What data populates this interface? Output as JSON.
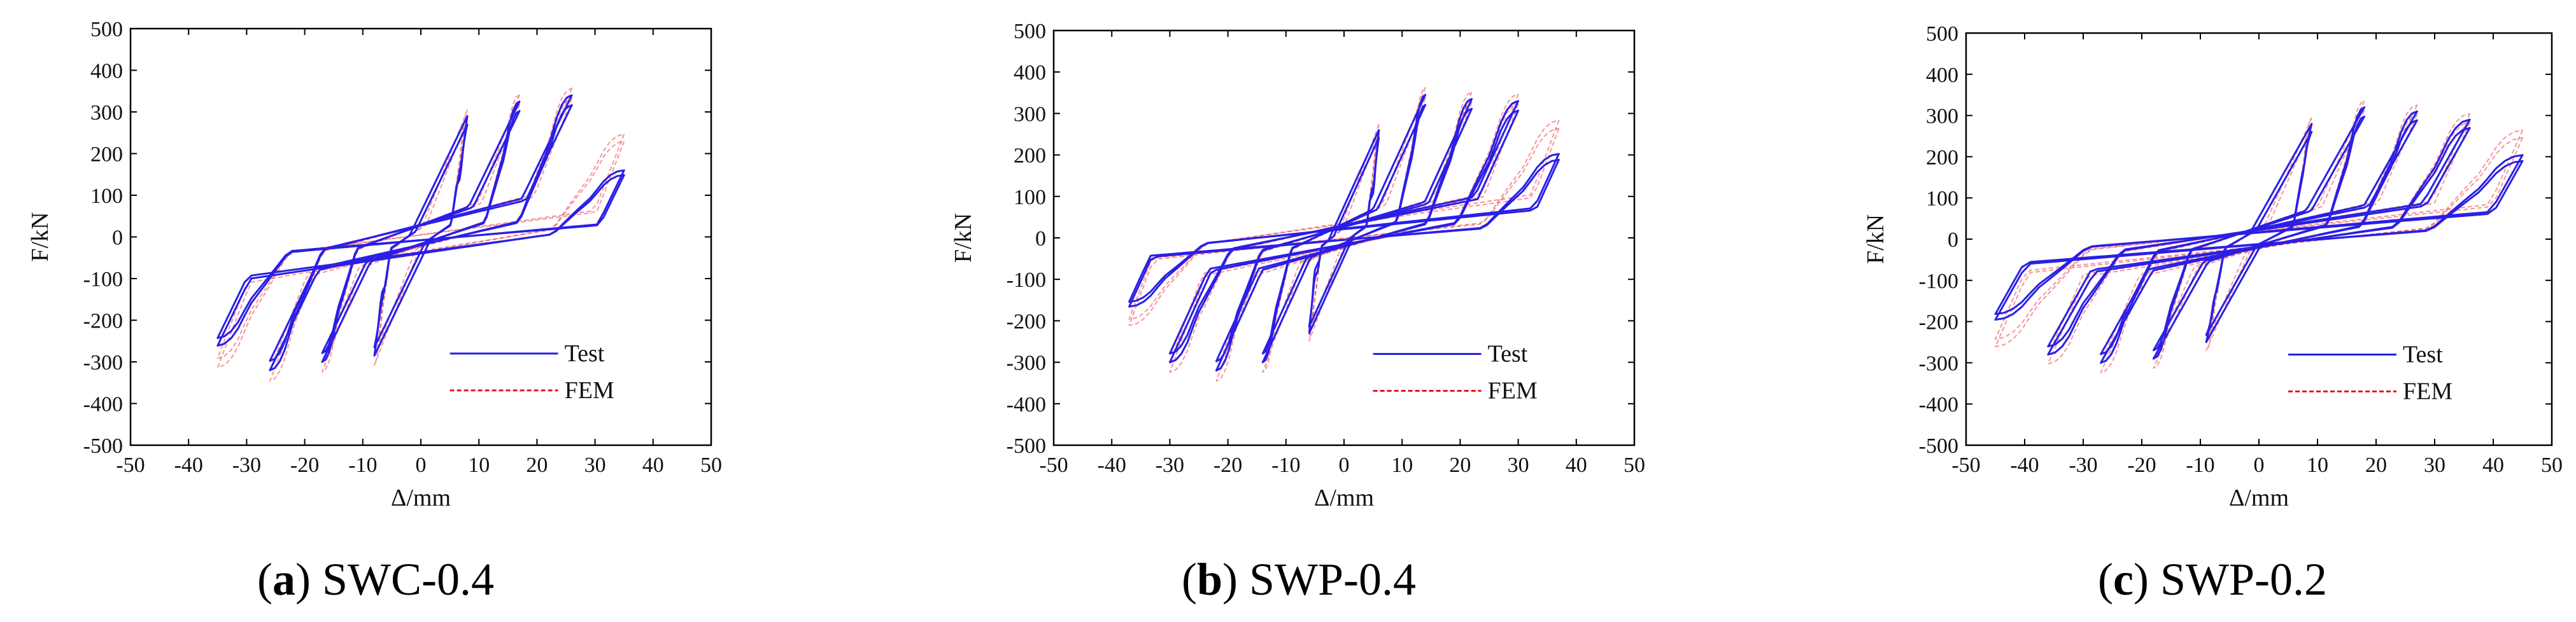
{
  "chart_data": [
    {
      "type": "line",
      "panel_letter": "a",
      "panel_name": "SWC-0.4",
      "xlabel": "Δ/mm",
      "ylabel": "F/kN",
      "xlim": [
        -50,
        50
      ],
      "ylim": [
        -500,
        500
      ],
      "xticks": [
        -50,
        -40,
        -30,
        -20,
        -10,
        0,
        10,
        20,
        30,
        40,
        50
      ],
      "yticks": [
        500,
        400,
        300,
        200,
        100,
        0,
        -100,
        -200,
        -300,
        -400,
        -500
      ],
      "legend_position": "bottom-right",
      "cycle_peaks": [
        {
          "d": 8,
          "fp": 290,
          "fn": -285
        },
        {
          "d": 17,
          "fp": 325,
          "fn": -300
        },
        {
          "d": 26,
          "fp": 340,
          "fn": -320
        },
        {
          "d": 35,
          "fp": 235,
          "fn": -290
        }
      ],
      "series": [
        {
          "name": "Test",
          "color": "#2a1fe6",
          "style": "solid",
          "k": 32,
          "fy": 260,
          "fy_neg": 240,
          "tail_factor": 0.68,
          "tail_factor_neg": 0.9,
          "width": 3
        },
        {
          "name": "FEM",
          "color": "#e8141c",
          "style": "dashed",
          "k": 40,
          "fy": 300,
          "fy_neg": 290,
          "tail_factor": 1.0,
          "tail_factor_neg": 1.0,
          "width": 2
        }
      ]
    },
    {
      "type": "line",
      "panel_letter": "b",
      "panel_name": "SWP-0.4",
      "xlabel": "Δ/mm",
      "ylabel": "F/kN",
      "xlim": [
        -50,
        50
      ],
      "ylim": [
        -500,
        500
      ],
      "xticks": [
        -50,
        -40,
        -30,
        -20,
        -10,
        0,
        10,
        20,
        30,
        40,
        50
      ],
      "yticks": [
        500,
        400,
        300,
        200,
        100,
        0,
        -100,
        -200,
        -300,
        -400,
        -500
      ],
      "legend_position": "bottom-right",
      "cycle_peaks": [
        {
          "d": 6,
          "fp": 260,
          "fn": -230
        },
        {
          "d": 14,
          "fp": 345,
          "fn": -300
        },
        {
          "d": 22,
          "fp": 335,
          "fn": -320
        },
        {
          "d": 30,
          "fp": 330,
          "fn": -300
        },
        {
          "d": 37,
          "fp": 270,
          "fn": -195
        }
      ],
      "series": [
        {
          "name": "Test",
          "color": "#2a1fe6",
          "style": "solid",
          "k": 34,
          "fy": 260,
          "fy_neg": 230,
          "tail_factor": 0.75,
          "tail_factor_neg": 0.85,
          "width": 3
        },
        {
          "name": "FEM",
          "color": "#e8141c",
          "style": "dashed",
          "k": 42,
          "fy": 300,
          "fy_neg": 290,
          "tail_factor": 1.0,
          "tail_factor_neg": 1.0,
          "width": 2
        }
      ]
    },
    {
      "type": "line",
      "panel_letter": "c",
      "panel_name": "SWP-0.2",
      "xlabel": "Δ/mm",
      "ylabel": "F/kN",
      "xlim": [
        -50,
        50
      ],
      "ylim": [
        -500,
        500
      ],
      "xticks": [
        -50,
        -40,
        -30,
        -20,
        -10,
        0,
        10,
        20,
        30,
        40,
        50
      ],
      "yticks": [
        500,
        400,
        300,
        200,
        100,
        0,
        -100,
        -200,
        -300,
        -400,
        -500
      ],
      "legend_position": "bottom-right",
      "cycle_peaks": [
        {
          "d": 9,
          "fp": 280,
          "fn": -250
        },
        {
          "d": 18,
          "fp": 320,
          "fn": -290
        },
        {
          "d": 27,
          "fp": 310,
          "fn": -300
        },
        {
          "d": 36,
          "fp": 290,
          "fn": -280
        },
        {
          "d": 45,
          "fp": 240,
          "fn": -230
        }
      ],
      "series": [
        {
          "name": "Test",
          "color": "#2a1fe6",
          "style": "solid",
          "k": 28,
          "fy": 250,
          "fy_neg": 230,
          "tail_factor": 0.85,
          "tail_factor_neg": 0.85,
          "width": 3
        },
        {
          "name": "FEM",
          "color": "#e8141c",
          "style": "dashed",
          "k": 36,
          "fy": 300,
          "fy_neg": 290,
          "tail_factor": 1.05,
          "tail_factor_neg": 1.05,
          "width": 2
        }
      ]
    }
  ]
}
